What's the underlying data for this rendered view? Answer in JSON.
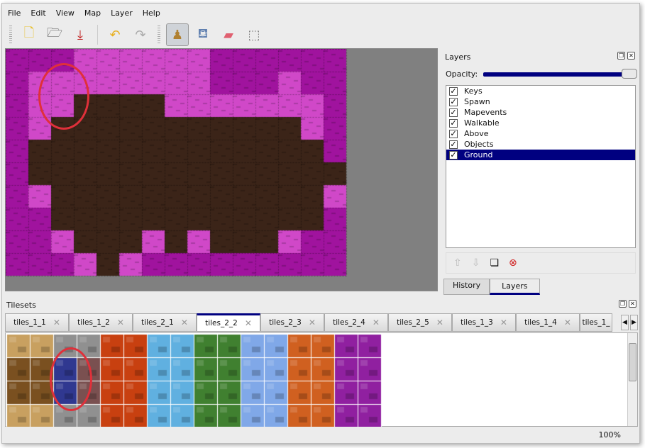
{
  "menu": [
    "File",
    "Edit",
    "View",
    "Map",
    "Layer",
    "Help"
  ],
  "toolbar": [
    {
      "name": "new-icon",
      "glyph": "🗋"
    },
    {
      "name": "open-icon",
      "glyph": "🗁"
    },
    {
      "name": "save-icon",
      "glyph": "⤓"
    },
    {
      "name": "undo-icon",
      "glyph": "↶"
    },
    {
      "name": "redo-icon",
      "glyph": "↷"
    },
    {
      "name": "stamp-brush-icon",
      "glyph": "♟",
      "active": true
    },
    {
      "name": "bucket-fill-icon",
      "glyph": "⛾"
    },
    {
      "name": "eraser-icon",
      "glyph": "▰"
    },
    {
      "name": "rect-select-icon",
      "glyph": "⬚"
    }
  ],
  "layers_panel": {
    "title": "Layers",
    "opacity_label": "Opacity:",
    "opacity": 1.0,
    "layers": [
      {
        "name": "Keys",
        "visible": true
      },
      {
        "name": "Spawn",
        "visible": true
      },
      {
        "name": "Mapevents",
        "visible": true
      },
      {
        "name": "Walkable",
        "visible": true
      },
      {
        "name": "Above",
        "visible": true
      },
      {
        "name": "Objects",
        "visible": true
      },
      {
        "name": "Ground",
        "visible": true,
        "selected": true
      }
    ],
    "tabs": [
      "History",
      "Layers"
    ],
    "active_tab": "Layers"
  },
  "tilesets_panel": {
    "title": "Tilesets",
    "tabs": [
      "tiles_1_1",
      "tiles_1_2",
      "tiles_2_1",
      "tiles_2_2",
      "tiles_2_3",
      "tiles_2_4",
      "tiles_2_5",
      "tiles_1_3",
      "tiles_1_4",
      "tiles_1_"
    ],
    "active_tab": "tiles_2_2"
  },
  "status": {
    "zoom": "100%"
  },
  "map": {
    "rows": [
      "mmmppppppmmmmmm",
      "mppppppppmmmpmm",
      "mppddddpppppppm",
      "mpdddddddddddpm",
      "mdddddddddddddm",
      "mddddddddddddddm",
      "mpddddddddddddpm",
      "mmddddddddddddm",
      "mmpdddpdpdddpmm",
      "mmmpdpmmmmmmmmm"
    ]
  },
  "colors": {
    "magenta": "#a0139e",
    "pink": "#d048c8",
    "dirt": "#3b2418",
    "selection": "#000080",
    "annotation": "#e0303a"
  }
}
